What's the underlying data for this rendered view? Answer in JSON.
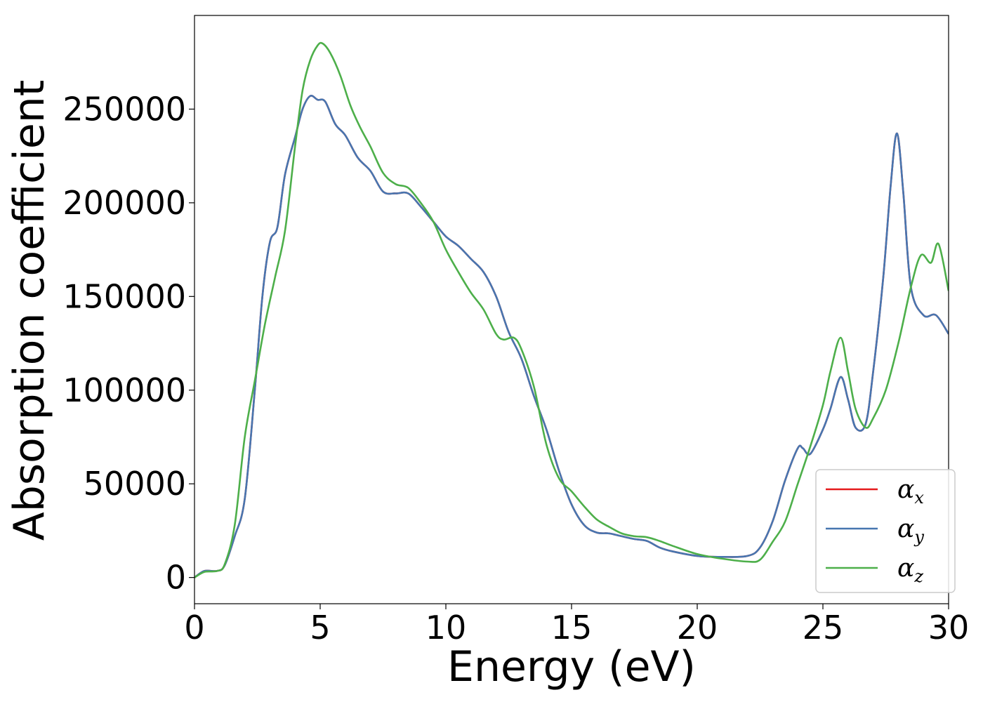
{
  "chart_data": {
    "type": "line",
    "xlabel": "Energy (eV)",
    "ylabel": "Absorption coefficient",
    "xlim": [
      0,
      30
    ],
    "ylim": [
      -14000,
      300000
    ],
    "xticks": [
      0,
      5,
      10,
      15,
      20,
      25,
      30
    ],
    "xtick_labels": [
      "0",
      "5",
      "10",
      "15",
      "20",
      "25",
      "30"
    ],
    "yticks": [
      0,
      50000,
      100000,
      150000,
      200000,
      250000
    ],
    "ytick_labels": [
      "0",
      "50000",
      "100000",
      "150000",
      "200000",
      "250000"
    ],
    "grid": false,
    "legend_position": "lower right",
    "series": [
      {
        "name": "α",
        "subscript": "x",
        "color": "#e41a1c",
        "x": [
          0,
          0.4,
          0.9,
          1.2,
          1.6,
          2.0,
          2.4,
          2.7,
          3.0,
          3.3,
          3.6,
          4.0,
          4.3,
          4.6,
          4.9,
          5.2,
          5.6,
          6.0,
          6.5,
          7.0,
          7.5,
          8.0,
          8.5,
          9.0,
          9.5,
          10.0,
          10.5,
          11.0,
          11.5,
          12.0,
          12.5,
          13.0,
          13.5,
          14.0,
          14.5,
          15.0,
          15.5,
          16.0,
          16.5,
          17.0,
          17.5,
          18.0,
          18.5,
          19.0,
          20.0,
          21.0,
          22.0,
          22.5,
          23.0,
          23.5,
          24.0,
          24.2,
          24.5,
          25.0,
          25.3,
          25.7,
          26.0,
          26.3,
          26.7,
          27.0,
          27.4,
          27.7,
          27.95,
          28.2,
          28.5,
          29.0,
          29.5,
          30.0
        ],
        "values": [
          0,
          3500,
          3500,
          6500,
          22000,
          42000,
          100000,
          150000,
          179000,
          187000,
          215000,
          235000,
          250000,
          257000,
          255000,
          254000,
          242000,
          236000,
          224000,
          217000,
          206000,
          205000,
          205000,
          198000,
          190000,
          182000,
          177000,
          170000,
          163000,
          150000,
          131000,
          117000,
          97000,
          79000,
          57000,
          39000,
          28000,
          24000,
          23500,
          22000,
          20500,
          19500,
          16000,
          14000,
          11500,
          11000,
          11500,
          16000,
          30000,
          52000,
          69000,
          69000,
          66000,
          79000,
          90000,
          107000,
          95000,
          80000,
          82000,
          110000,
          160000,
          210000,
          237000,
          205000,
          155000,
          140000,
          140000,
          130000
        ]
      },
      {
        "name": "α",
        "subscript": "y",
        "color": "#4776b0",
        "x": [
          0,
          0.4,
          0.9,
          1.2,
          1.6,
          2.0,
          2.4,
          2.7,
          3.0,
          3.3,
          3.6,
          4.0,
          4.3,
          4.6,
          4.9,
          5.2,
          5.6,
          6.0,
          6.5,
          7.0,
          7.5,
          8.0,
          8.5,
          9.0,
          9.5,
          10.0,
          10.5,
          11.0,
          11.5,
          12.0,
          12.5,
          13.0,
          13.5,
          14.0,
          14.5,
          15.0,
          15.5,
          16.0,
          16.5,
          17.0,
          17.5,
          18.0,
          18.5,
          19.0,
          20.0,
          21.0,
          22.0,
          22.5,
          23.0,
          23.5,
          24.0,
          24.2,
          24.5,
          25.0,
          25.3,
          25.7,
          26.0,
          26.3,
          26.7,
          27.0,
          27.4,
          27.7,
          27.95,
          28.2,
          28.5,
          29.0,
          29.5,
          30.0
        ],
        "values": [
          0,
          3500,
          3500,
          6500,
          22000,
          42000,
          100000,
          150000,
          179000,
          187000,
          215000,
          235000,
          250000,
          257000,
          255000,
          254000,
          242000,
          236000,
          224000,
          217000,
          206000,
          205000,
          205000,
          198000,
          190000,
          182000,
          177000,
          170000,
          163000,
          150000,
          131000,
          117000,
          97000,
          79000,
          57000,
          39000,
          28000,
          24000,
          23500,
          22000,
          20500,
          19500,
          16000,
          14000,
          11500,
          11000,
          11500,
          16000,
          30000,
          52000,
          69000,
          69000,
          66000,
          79000,
          90000,
          107000,
          95000,
          80000,
          82000,
          110000,
          160000,
          210000,
          237000,
          205000,
          155000,
          140000,
          140000,
          130000
        ]
      },
      {
        "name": "α",
        "subscript": "z",
        "color": "#4daf4a",
        "x": [
          0,
          0.4,
          0.9,
          1.2,
          1.6,
          2.0,
          2.4,
          2.8,
          3.2,
          3.6,
          4.0,
          4.3,
          4.6,
          4.9,
          5.1,
          5.4,
          5.8,
          6.2,
          6.6,
          7.0,
          7.5,
          8.0,
          8.5,
          9.0,
          9.5,
          10.0,
          10.5,
          11.0,
          11.5,
          12.0,
          12.3,
          12.7,
          13.0,
          13.5,
          14.0,
          14.5,
          15.0,
          15.5,
          16.0,
          16.5,
          17.0,
          17.5,
          18.0,
          18.5,
          19.0,
          20.0,
          21.0,
          22.0,
          22.5,
          23.0,
          23.5,
          24.0,
          24.5,
          25.0,
          25.3,
          25.7,
          26.0,
          26.3,
          26.7,
          27.0,
          27.5,
          28.0,
          28.5,
          28.9,
          29.3,
          29.6,
          30.0
        ],
        "values": [
          0,
          3000,
          3500,
          7000,
          28000,
          75000,
          105000,
          135000,
          160000,
          185000,
          230000,
          260000,
          276000,
          284000,
          285000,
          280000,
          268000,
          252000,
          240000,
          230000,
          216000,
          210000,
          208000,
          200000,
          190000,
          175000,
          163000,
          152000,
          143000,
          130000,
          127000,
          128000,
          122000,
          102000,
          71000,
          53000,
          46000,
          38000,
          31000,
          27000,
          23500,
          22000,
          21500,
          19500,
          17000,
          12500,
          10000,
          8500,
          9500,
          19000,
          30000,
          50000,
          70000,
          92000,
          110000,
          128000,
          110000,
          90000,
          80000,
          85000,
          100000,
          125000,
          155000,
          172000,
          168000,
          178000,
          153000
        ]
      }
    ]
  }
}
